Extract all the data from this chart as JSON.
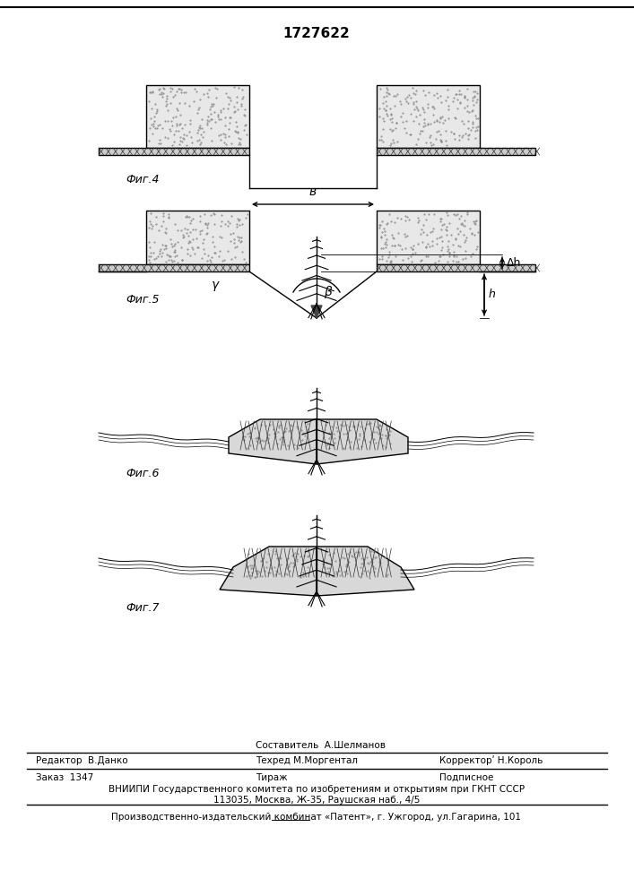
{
  "title": "1727622",
  "bg_color": "#ffffff",
  "line_color": "#000000",
  "fig4_label": "Фиг.4",
  "fig5_label": "Фиг.5",
  "fig6_label": "Фиг.6",
  "fig7_label": "Фиг.7",
  "footer_sestavitel": "Составитель  А.Шелманов",
  "footer_redaktor": "Редактор  В.Данко",
  "footer_tehred": "Техред М.Моргентал",
  "footer_korrektor": "Корректорʹ Н.Король",
  "footer_zakaz": "Заказ  1347",
  "footer_tirazh": "Тираж",
  "footer_podpisnoe": "Подписное",
  "footer_vniipи": "ВНИИПИ Государственного комитета по изобретениям и открытиям при ГКНТ СССР",
  "footer_addr": "113035, Москва, Ж-35, Раушская наб., 4/5",
  "footer_patent": "Производственно-издательский комбинат «Патент», г. Ужгород, ул.Гагарина, 101"
}
